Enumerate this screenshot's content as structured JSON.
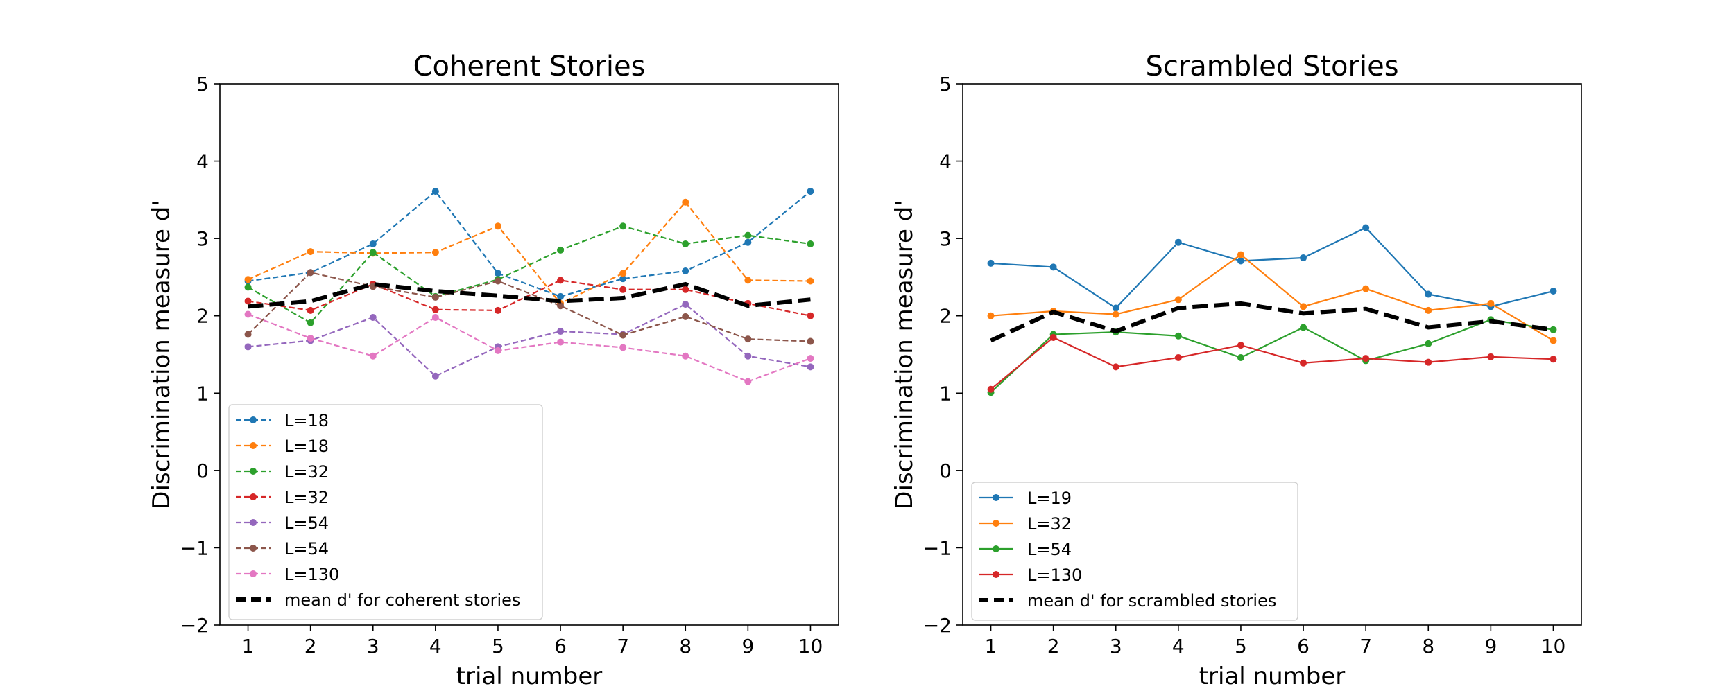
{
  "chart_data": [
    {
      "type": "line",
      "title": "Coherent Stories",
      "xlabel": "trial number",
      "ylabel": "Discrimination measure d'",
      "x": [
        1,
        2,
        3,
        4,
        5,
        6,
        7,
        8,
        9,
        10
      ],
      "xticks": [
        "1",
        "2",
        "3",
        "4",
        "5",
        "6",
        "7",
        "8",
        "9",
        "10"
      ],
      "yticks": [
        "−2",
        "−1",
        "0",
        "1",
        "2",
        "3",
        "4",
        "5"
      ],
      "ylim": [
        -2,
        5
      ],
      "xlim": [
        0.55,
        10.45
      ],
      "grid": false,
      "legend_position": "lower-left",
      "series": [
        {
          "name": "L=18",
          "color": "#1f77b4",
          "style": "dashed",
          "values": [
            2.45,
            2.56,
            2.93,
            3.61,
            2.55,
            2.25,
            2.48,
            2.58,
            2.95,
            3.61
          ]
        },
        {
          "name": "L=18",
          "color": "#ff7f0e",
          "style": "dashed",
          "values": [
            2.47,
            2.83,
            2.81,
            2.82,
            3.16,
            2.16,
            2.55,
            3.47,
            2.46,
            2.45
          ]
        },
        {
          "name": "L=32",
          "color": "#2ca02c",
          "style": "dashed",
          "values": [
            2.37,
            1.91,
            2.82,
            2.25,
            2.47,
            2.85,
            3.16,
            2.93,
            3.04,
            2.93
          ]
        },
        {
          "name": "L=32",
          "color": "#d62728",
          "style": "dashed",
          "values": [
            2.19,
            2.07,
            2.41,
            2.08,
            2.07,
            2.46,
            2.34,
            2.34,
            2.16,
            2.0
          ]
        },
        {
          "name": "L=54",
          "color": "#9467bd",
          "style": "dashed",
          "values": [
            1.6,
            1.68,
            1.98,
            1.22,
            1.6,
            1.8,
            1.76,
            2.15,
            1.48,
            1.34
          ]
        },
        {
          "name": "L=54",
          "color": "#8c564b",
          "style": "dashed",
          "values": [
            1.76,
            2.56,
            2.38,
            2.24,
            2.45,
            2.13,
            1.75,
            1.99,
            1.7,
            1.67
          ]
        },
        {
          "name": "L=130",
          "color": "#e377c2",
          "style": "dashed",
          "values": [
            2.02,
            1.71,
            1.48,
            1.98,
            1.55,
            1.66,
            1.59,
            1.48,
            1.15,
            1.45
          ]
        },
        {
          "name": "mean d' for coherent stories",
          "color": "#000000",
          "style": "thick-dashed",
          "values": [
            2.12,
            2.19,
            2.41,
            2.32,
            2.26,
            2.19,
            2.23,
            2.41,
            2.13,
            2.21
          ]
        }
      ]
    },
    {
      "type": "line",
      "title": "Scrambled Stories",
      "xlabel": "trial number",
      "ylabel": "Discrimination measure d'",
      "x": [
        1,
        2,
        3,
        4,
        5,
        6,
        7,
        8,
        9,
        10
      ],
      "xticks": [
        "1",
        "2",
        "3",
        "4",
        "5",
        "6",
        "7",
        "8",
        "9",
        "10"
      ],
      "yticks": [
        "−2",
        "−1",
        "0",
        "1",
        "2",
        "3",
        "4",
        "5"
      ],
      "ylim": [
        -2,
        5
      ],
      "xlim": [
        0.55,
        10.45
      ],
      "grid": false,
      "legend_position": "lower-left",
      "series": [
        {
          "name": "L=19",
          "color": "#1f77b4",
          "style": "solid",
          "values": [
            2.68,
            2.63,
            2.1,
            2.95,
            2.71,
            2.75,
            3.14,
            2.28,
            2.12,
            2.32
          ]
        },
        {
          "name": "L=32",
          "color": "#ff7f0e",
          "style": "solid",
          "values": [
            2.0,
            2.06,
            2.02,
            2.21,
            2.79,
            2.12,
            2.35,
            2.07,
            2.16,
            1.68
          ]
        },
        {
          "name": "L=54",
          "color": "#2ca02c",
          "style": "solid",
          "values": [
            1.01,
            1.76,
            1.79,
            1.74,
            1.46,
            1.85,
            1.42,
            1.64,
            1.95,
            1.82
          ]
        },
        {
          "name": "L=130",
          "color": "#d62728",
          "style": "solid",
          "values": [
            1.05,
            1.72,
            1.34,
            1.46,
            1.62,
            1.39,
            1.45,
            1.4,
            1.47,
            1.44
          ]
        },
        {
          "name": "mean d' for scrambled stories",
          "color": "#000000",
          "style": "thick-dashed",
          "values": [
            1.68,
            2.05,
            1.8,
            2.1,
            2.16,
            2.03,
            2.09,
            1.85,
            1.93,
            1.82
          ]
        }
      ]
    }
  ]
}
